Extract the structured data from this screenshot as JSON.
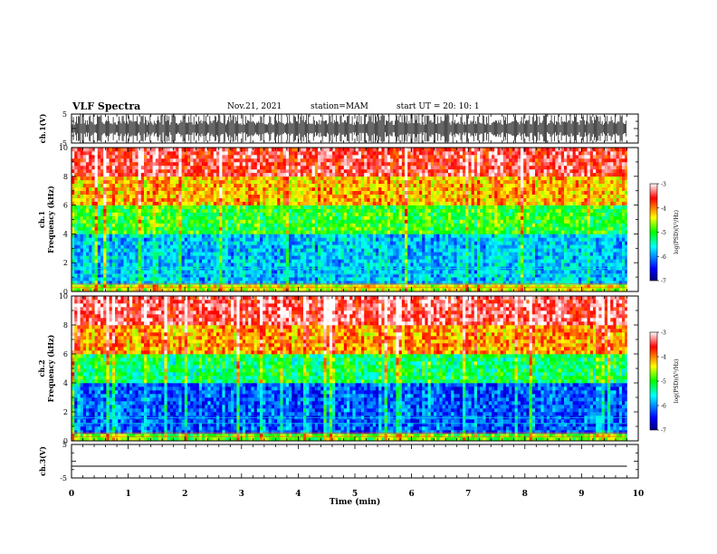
{
  "header": {
    "title": "VLF Spectra",
    "date": "Nov.21, 2021",
    "station": "station=MAM",
    "start": "start  UT =   20: 10: 1"
  },
  "chart_data": [
    {
      "type": "line",
      "panel": "ch1-waveform",
      "ylabel": "ch.1(V)",
      "ylim": [
        -5,
        5
      ],
      "yticks": [
        "5",
        "-5"
      ],
      "description_level": "dense impulsive waveform spanning approx -5 to 5 V",
      "color": "#000000"
    },
    {
      "type": "heatmap",
      "panel": "ch1-spectrogram",
      "ylabel": "ch.1\nFrequency (kHz)",
      "ylim": [
        0,
        10
      ],
      "yticks": [
        "0",
        "2",
        "4",
        "6",
        "8",
        "10"
      ],
      "xlim": [
        0,
        10
      ],
      "colorbar": {
        "label": "log(PSD)(V²/Hz)",
        "range": [
          -7,
          -3
        ],
        "ticks": [
          "-3",
          "-4",
          "-5",
          "-6",
          "-7"
        ]
      },
      "band_levels_log_psd": [
        {
          "freq_khz": [
            0,
            0.6
          ],
          "level": -4.5
        },
        {
          "freq_khz": [
            0.6,
            4
          ],
          "level": -5.8
        },
        {
          "freq_khz": [
            4,
            6
          ],
          "level": -5.0
        },
        {
          "freq_khz": [
            6,
            8
          ],
          "level": -4.2
        },
        {
          "freq_khz": [
            8,
            10
          ],
          "level": -3.5
        }
      ]
    },
    {
      "type": "heatmap",
      "panel": "ch2-spectrogram",
      "ylabel": "ch.2\nFrequency (kHz)",
      "ylim": [
        0,
        10
      ],
      "yticks": [
        "0",
        "2",
        "4",
        "6",
        "8",
        "10"
      ],
      "xlim": [
        0,
        10
      ],
      "colorbar": {
        "label": "log(PSD)(V²/Hz)",
        "range": [
          -7,
          -3
        ],
        "ticks": [
          "-3",
          "-4",
          "-5",
          "-6",
          "-7"
        ]
      },
      "band_levels_log_psd": [
        {
          "freq_khz": [
            0,
            0.6
          ],
          "level": -4.8
        },
        {
          "freq_khz": [
            0.6,
            4
          ],
          "level": -6.2
        },
        {
          "freq_khz": [
            4,
            6
          ],
          "level": -5.2
        },
        {
          "freq_khz": [
            6,
            8
          ],
          "level": -4.1
        },
        {
          "freq_khz": [
            8,
            10
          ],
          "level": -3.4
        }
      ]
    },
    {
      "type": "line",
      "panel": "ch3-waveform",
      "ylabel": "ch.3(V)",
      "ylim": [
        -5,
        5
      ],
      "yticks": [
        "5",
        "-5"
      ],
      "x": [
        0,
        9.8
      ],
      "y": [
        -1.5,
        -1.5
      ],
      "color": "#000000"
    }
  ],
  "xaxis": {
    "label": "Time (min)",
    "range": [
      0,
      10
    ],
    "ticks": [
      "0",
      "1",
      "2",
      "3",
      "4",
      "5",
      "6",
      "7",
      "8",
      "9",
      "10"
    ],
    "data_end": 9.8
  }
}
